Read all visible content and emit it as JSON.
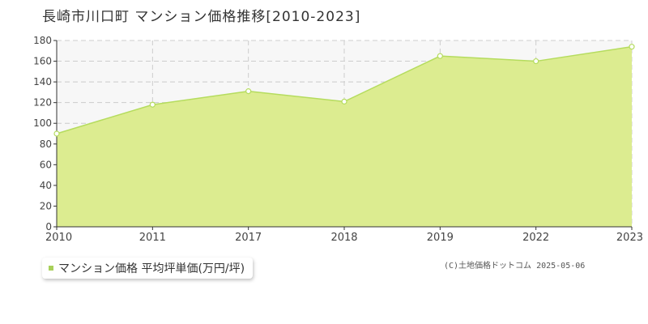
{
  "title": "長崎市川口町 マンション価格推移[2010-2023]",
  "legend_label": "マンション価格 平均坪単価(万円/坪)",
  "copyright": "(C)土地価格ドットコム 2025-05-06",
  "colors": {
    "area_fill": "#dcec90",
    "line": "#b5dc5e",
    "marker_fill": "#ffffff",
    "plot_bg": "#f7f7f7",
    "grid": "#cccccc",
    "legend_marker": "#a8d05a"
  },
  "chart_data": {
    "type": "area",
    "title": "長崎市川口町 マンション価格推移[2010-2023]",
    "categories": [
      "2010",
      "2011",
      "2017",
      "2018",
      "2019",
      "2022",
      "2023"
    ],
    "series": [
      {
        "name": "マンション価格 平均坪単価(万円/坪)",
        "values": [
          90,
          118,
          131,
          121,
          165,
          160,
          174
        ]
      }
    ],
    "yticks": [
      0,
      20,
      40,
      60,
      80,
      100,
      120,
      140,
      160,
      180
    ],
    "ylim": [
      0,
      180
    ],
    "xlabel": "",
    "ylabel": "",
    "grid": true,
    "legend_position": "bottom-left"
  }
}
